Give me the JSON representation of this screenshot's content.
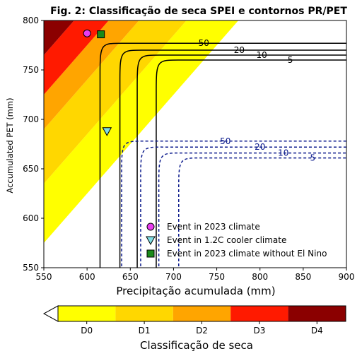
{
  "title": "Fig. 2: Classificação de seca SPEI e contornos PR/PET",
  "chart_data": {
    "type": "contour",
    "xlabel": "Precipitação acumulada (mm)",
    "ylabel": "Accumulated PET (mm)",
    "xlim": [
      550,
      900
    ],
    "ylim": [
      550,
      800
    ],
    "xticks": [
      550,
      600,
      650,
      700,
      750,
      800,
      850,
      900
    ],
    "yticks": [
      550,
      600,
      650,
      700,
      750,
      800
    ],
    "background_color": "#ffffff",
    "drought_bands": [
      {
        "label": "D0",
        "color": "#ffff00",
        "x_offset_min": -85,
        "x_offset_max": -25
      },
      {
        "label": "D1",
        "color": "#ffd700",
        "x_offset_min": -140,
        "x_offset_max": -85
      },
      {
        "label": "D2",
        "color": "#ffa500",
        "x_offset_min": -175,
        "x_offset_max": -140
      },
      {
        "label": "D3",
        "color": "#ff1a00",
        "x_offset_min": -215,
        "x_offset_max": -175
      },
      {
        "label": "D4",
        "color": "#8b0000",
        "x_offset_min": -400,
        "x_offset_max": -215
      }
    ],
    "contour_sets": [
      {
        "name": "black",
        "color": "#000000",
        "dashed": false,
        "curves": [
          {
            "label": "5",
            "x_asym": 680,
            "y_asym": 760
          },
          {
            "label": "10",
            "x_asym": 658,
            "y_asym": 765
          },
          {
            "label": "20",
            "x_asym": 638,
            "y_asym": 770
          },
          {
            "label": "50",
            "x_asym": 615,
            "y_asym": 777
          }
        ]
      },
      {
        "name": "navy",
        "color": "#0b1a8c",
        "dashed": true,
        "curves": [
          {
            "label": "5",
            "x_asym": 706,
            "y_asym": 661
          },
          {
            "label": "10",
            "x_asym": 683,
            "y_asym": 666
          },
          {
            "label": "20",
            "x_asym": 662,
            "y_asym": 672
          },
          {
            "label": "50",
            "x_asym": 640,
            "y_asym": 678
          }
        ]
      }
    ],
    "points": [
      {
        "name": "Event in 2023 climate",
        "x": 600,
        "y": 787,
        "marker": "circle",
        "color": "#e83cf0"
      },
      {
        "name": "Event in 1.2C cooler climate",
        "x": 623,
        "y": 688,
        "marker": "triangle-down",
        "color": "#7fdde4"
      },
      {
        "name": "Event in 2023 climate without El Nino",
        "x": 616,
        "y": 786,
        "marker": "square",
        "color": "#1a8a1a"
      }
    ],
    "legend_position": "lower-right",
    "colorbar": {
      "label": "Classificação de seca",
      "categories": [
        "D0",
        "D1",
        "D2",
        "D3",
        "D4"
      ],
      "colors": [
        "#ffff00",
        "#ffd700",
        "#ffa500",
        "#ff1a00",
        "#8b0000"
      ],
      "under_color": "#ffffff"
    }
  }
}
